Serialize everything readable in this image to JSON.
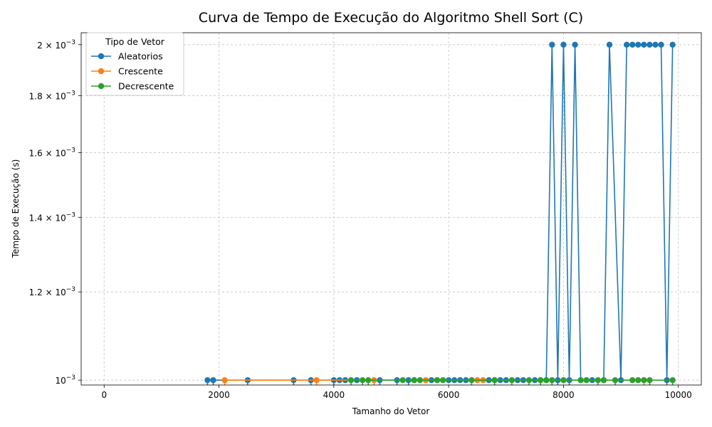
{
  "chart_data": {
    "type": "line",
    "title": "Curva de Tempo de Execução do Algoritmo Shell Sort (C)",
    "xlabel": "Tamanho do Vetor",
    "ylabel": "Tempo de Execução (s)",
    "xlim": [
      -400,
      10400
    ],
    "ylim": [
      0.00099,
      0.00205
    ],
    "y_scale": "log",
    "grid": true,
    "x_ticks": [
      {
        "value": 0,
        "label": "0"
      },
      {
        "value": 2000,
        "label": "2000"
      },
      {
        "value": 4000,
        "label": "4000"
      },
      {
        "value": 6000,
        "label": "6000"
      },
      {
        "value": 8000,
        "label": "8000"
      },
      {
        "value": 10000,
        "label": "10000"
      }
    ],
    "y_ticks": [
      {
        "value": 0.001,
        "mant": "10",
        "exp": "−3"
      },
      {
        "value": 0.0012,
        "mant": "1.2 × 10",
        "exp": "−3"
      },
      {
        "value": 0.0014,
        "mant": "1.4 × 10",
        "exp": "−3"
      },
      {
        "value": 0.0016,
        "mant": "1.6 × 10",
        "exp": "−3"
      },
      {
        "value": 0.0018,
        "mant": "1.8 × 10",
        "exp": "−3"
      },
      {
        "value": 0.002,
        "mant": "2 × 10",
        "exp": "−3"
      }
    ],
    "legend": {
      "title": "Tipo de Vetor",
      "position": "top-left"
    },
    "series": [
      {
        "name": "Aleatorios",
        "color": "#1f77b4",
        "points": [
          [
            1800,
            0.001
          ],
          [
            1900,
            0.001
          ],
          [
            2500,
            0.001
          ],
          [
            3300,
            0.001
          ],
          [
            3600,
            0.001
          ],
          [
            4000,
            0.001
          ],
          [
            4100,
            0.001
          ],
          [
            4200,
            0.001
          ],
          [
            4400,
            0.001
          ],
          [
            4800,
            0.001
          ],
          [
            5100,
            0.001
          ],
          [
            5300,
            0.001
          ],
          [
            5400,
            0.001
          ],
          [
            5700,
            0.001
          ],
          [
            5800,
            0.001
          ],
          [
            6000,
            0.001
          ],
          [
            6100,
            0.001
          ],
          [
            6200,
            0.001
          ],
          [
            6300,
            0.001
          ],
          [
            6700,
            0.001
          ],
          [
            6800,
            0.001
          ],
          [
            6900,
            0.001
          ],
          [
            7000,
            0.001
          ],
          [
            7200,
            0.001
          ],
          [
            7300,
            0.001
          ],
          [
            7500,
            0.001
          ],
          [
            7600,
            0.001
          ],
          [
            7700,
            0.001
          ],
          [
            7800,
            0.002
          ],
          [
            7900,
            0.001
          ],
          [
            8000,
            0.002
          ],
          [
            8100,
            0.001
          ],
          [
            8200,
            0.002
          ],
          [
            8300,
            0.001
          ],
          [
            8400,
            0.001
          ],
          [
            8500,
            0.001
          ],
          [
            8700,
            0.001
          ],
          [
            8800,
            0.002
          ],
          [
            9000,
            0.001
          ],
          [
            9100,
            0.002
          ],
          [
            9200,
            0.002
          ],
          [
            9300,
            0.002
          ],
          [
            9400,
            0.002
          ],
          [
            9500,
            0.002
          ],
          [
            9600,
            0.002
          ],
          [
            9700,
            0.002
          ],
          [
            9800,
            0.001
          ],
          [
            9900,
            0.002
          ]
        ],
        "drops_at": [
          1800,
          1900,
          2500,
          3300,
          3600,
          4000,
          4800,
          5100,
          5300,
          7900,
          8100,
          9800
        ]
      },
      {
        "name": "Crescente",
        "color": "#ff7f0e",
        "points": [
          [
            2100,
            0.001
          ],
          [
            3700,
            0.001
          ],
          [
            4700,
            0.001
          ],
          [
            5600,
            0.001
          ],
          [
            6500,
            0.001
          ],
          [
            6600,
            0.001
          ],
          [
            9400,
            0.001
          ]
        ],
        "drops_at": [
          2100,
          3700,
          4700,
          9400
        ]
      },
      {
        "name": "Decrescente",
        "color": "#2ca02c",
        "points": [
          [
            4300,
            0.001
          ],
          [
            4500,
            0.001
          ],
          [
            4600,
            0.001
          ],
          [
            5200,
            0.001
          ],
          [
            5400,
            0.001
          ],
          [
            5500,
            0.001
          ],
          [
            5800,
            0.001
          ],
          [
            5900,
            0.001
          ],
          [
            6400,
            0.001
          ],
          [
            6800,
            0.001
          ],
          [
            7100,
            0.001
          ],
          [
            7400,
            0.001
          ],
          [
            7600,
            0.001
          ],
          [
            7700,
            0.001
          ],
          [
            7800,
            0.001
          ],
          [
            8000,
            0.001
          ],
          [
            8300,
            0.001
          ],
          [
            8400,
            0.001
          ],
          [
            8600,
            0.001
          ],
          [
            8700,
            0.001
          ],
          [
            8900,
            0.001
          ],
          [
            9200,
            0.001
          ],
          [
            9300,
            0.001
          ],
          [
            9400,
            0.001
          ],
          [
            9500,
            0.001
          ],
          [
            9900,
            0.001
          ]
        ],
        "drops_at": [
          4300,
          4500,
          4600,
          6400,
          6800,
          7100,
          7400,
          7600,
          7800,
          8600,
          8900,
          9500,
          9900
        ]
      }
    ]
  }
}
